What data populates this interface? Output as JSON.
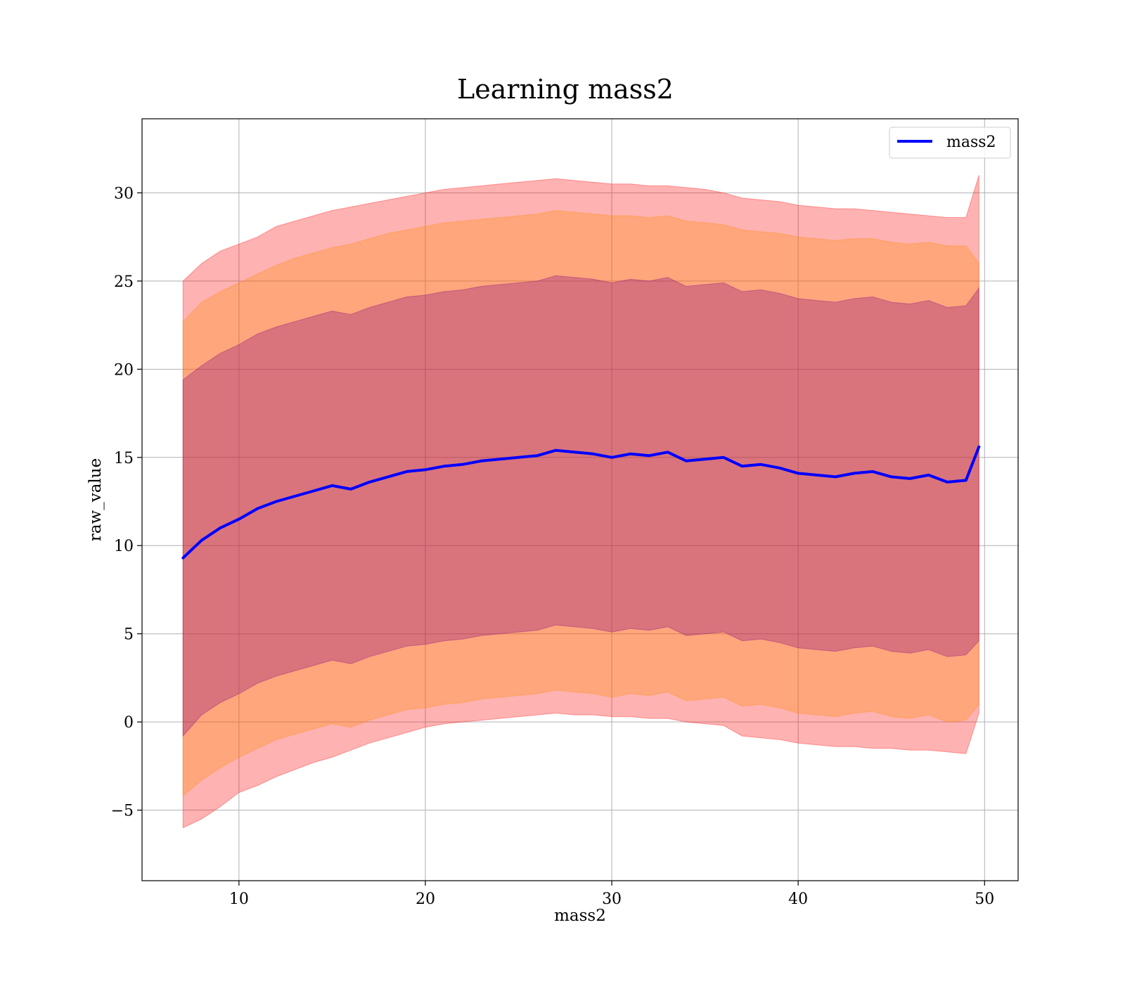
{
  "chart_data": {
    "type": "line",
    "title": "Learning mass2",
    "xlabel": "mass2",
    "ylabel": "raw_value",
    "xlim": [
      4.8,
      51.8
    ],
    "ylim": [
      -9,
      34.2
    ],
    "xticks": [
      10,
      20,
      30,
      40,
      50
    ],
    "xtick_labels": [
      "10",
      "20",
      "30",
      "40",
      "50"
    ],
    "yticks": [
      -5,
      0,
      5,
      10,
      15,
      20,
      25,
      30
    ],
    "ytick_labels": [
      "−5",
      "0",
      "5",
      "10",
      "15",
      "20",
      "25",
      "30"
    ],
    "grid": true,
    "legend": {
      "position": "top-right",
      "entries": [
        "mass2"
      ]
    },
    "x": [
      7,
      8,
      9,
      10,
      11,
      12,
      13,
      14,
      15,
      16,
      17,
      18,
      19,
      20,
      21,
      22,
      23,
      24,
      25,
      26,
      27,
      28,
      29,
      30,
      31,
      32,
      33,
      34,
      35,
      36,
      37,
      38,
      39,
      40,
      41,
      42,
      43,
      44,
      45,
      46,
      47,
      48,
      49,
      49.7
    ],
    "series": [
      {
        "name": "mass2",
        "color": "#0000ff",
        "values": [
          9.3,
          10.3,
          11.0,
          11.5,
          12.1,
          12.5,
          12.8,
          13.1,
          13.4,
          13.2,
          13.6,
          13.9,
          14.2,
          14.3,
          14.5,
          14.6,
          14.8,
          14.9,
          15.0,
          15.1,
          15.4,
          15.3,
          15.2,
          15.0,
          15.2,
          15.1,
          15.3,
          14.8,
          14.9,
          15.0,
          14.5,
          14.6,
          14.4,
          14.1,
          14.0,
          13.9,
          14.1,
          14.2,
          13.9,
          13.8,
          14.0,
          13.6,
          13.7,
          15.6
        ]
      }
    ],
    "bands": [
      {
        "level": "outer",
        "color": "#ff0000",
        "opacity": 0.3,
        "upper": [
          25.0,
          26.0,
          26.7,
          27.1,
          27.5,
          28.1,
          28.4,
          28.7,
          29.0,
          29.2,
          29.4,
          29.6,
          29.8,
          30.0,
          30.2,
          30.3,
          30.4,
          30.5,
          30.6,
          30.7,
          30.8,
          30.7,
          30.6,
          30.5,
          30.5,
          30.4,
          30.4,
          30.3,
          30.2,
          30.0,
          29.7,
          29.6,
          29.5,
          29.3,
          29.2,
          29.1,
          29.1,
          29.0,
          28.9,
          28.8,
          28.7,
          28.6,
          28.6,
          31.0
        ],
        "lower": [
          -6.0,
          -5.5,
          -4.8,
          -4.0,
          -3.6,
          -3.1,
          -2.7,
          -2.3,
          -2.0,
          -1.6,
          -1.2,
          -0.9,
          -0.6,
          -0.3,
          -0.1,
          0.0,
          0.1,
          0.2,
          0.3,
          0.4,
          0.5,
          0.4,
          0.4,
          0.3,
          0.3,
          0.2,
          0.2,
          0.0,
          -0.1,
          -0.2,
          -0.8,
          -0.9,
          -1.0,
          -1.2,
          -1.3,
          -1.4,
          -1.4,
          -1.5,
          -1.5,
          -1.6,
          -1.6,
          -1.7,
          -1.8,
          0.5
        ]
      },
      {
        "level": "middle",
        "color": "#ff8c00",
        "opacity": 0.3,
        "upper": [
          22.7,
          23.8,
          24.4,
          24.9,
          25.4,
          25.9,
          26.3,
          26.6,
          26.9,
          27.1,
          27.4,
          27.7,
          27.9,
          28.1,
          28.3,
          28.4,
          28.5,
          28.6,
          28.7,
          28.8,
          29.0,
          28.9,
          28.8,
          28.7,
          28.7,
          28.6,
          28.7,
          28.4,
          28.3,
          28.2,
          27.9,
          27.8,
          27.7,
          27.5,
          27.4,
          27.3,
          27.4,
          27.4,
          27.2,
          27.1,
          27.2,
          27.0,
          27.0,
          26.0
        ],
        "lower": [
          -4.2,
          -3.3,
          -2.6,
          -2.0,
          -1.5,
          -1.0,
          -0.7,
          -0.4,
          -0.1,
          -0.3,
          0.1,
          0.4,
          0.7,
          0.8,
          1.0,
          1.1,
          1.3,
          1.4,
          1.5,
          1.6,
          1.8,
          1.7,
          1.6,
          1.4,
          1.6,
          1.5,
          1.7,
          1.2,
          1.3,
          1.4,
          0.9,
          1.0,
          0.8,
          0.5,
          0.4,
          0.3,
          0.5,
          0.6,
          0.3,
          0.2,
          0.4,
          0.0,
          0.1,
          1.0
        ]
      },
      {
        "level": "inner",
        "color": "#800080",
        "opacity": 0.3,
        "upper": [
          19.4,
          20.2,
          20.9,
          21.4,
          22.0,
          22.4,
          22.7,
          23.0,
          23.3,
          23.1,
          23.5,
          23.8,
          24.1,
          24.2,
          24.4,
          24.5,
          24.7,
          24.8,
          24.9,
          25.0,
          25.3,
          25.2,
          25.1,
          24.9,
          25.1,
          25.0,
          25.2,
          24.7,
          24.8,
          24.9,
          24.4,
          24.5,
          24.3,
          24.0,
          23.9,
          23.8,
          24.0,
          24.1,
          23.8,
          23.7,
          23.9,
          23.5,
          23.6,
          24.6
        ],
        "lower": [
          -0.8,
          0.4,
          1.1,
          1.6,
          2.2,
          2.6,
          2.9,
          3.2,
          3.5,
          3.3,
          3.7,
          4.0,
          4.3,
          4.4,
          4.6,
          4.7,
          4.9,
          5.0,
          5.1,
          5.2,
          5.5,
          5.4,
          5.3,
          5.1,
          5.3,
          5.2,
          5.4,
          4.9,
          5.0,
          5.1,
          4.6,
          4.7,
          4.5,
          4.2,
          4.1,
          4.0,
          4.2,
          4.3,
          4.0,
          3.9,
          4.1,
          3.7,
          3.8,
          4.6
        ]
      }
    ]
  }
}
